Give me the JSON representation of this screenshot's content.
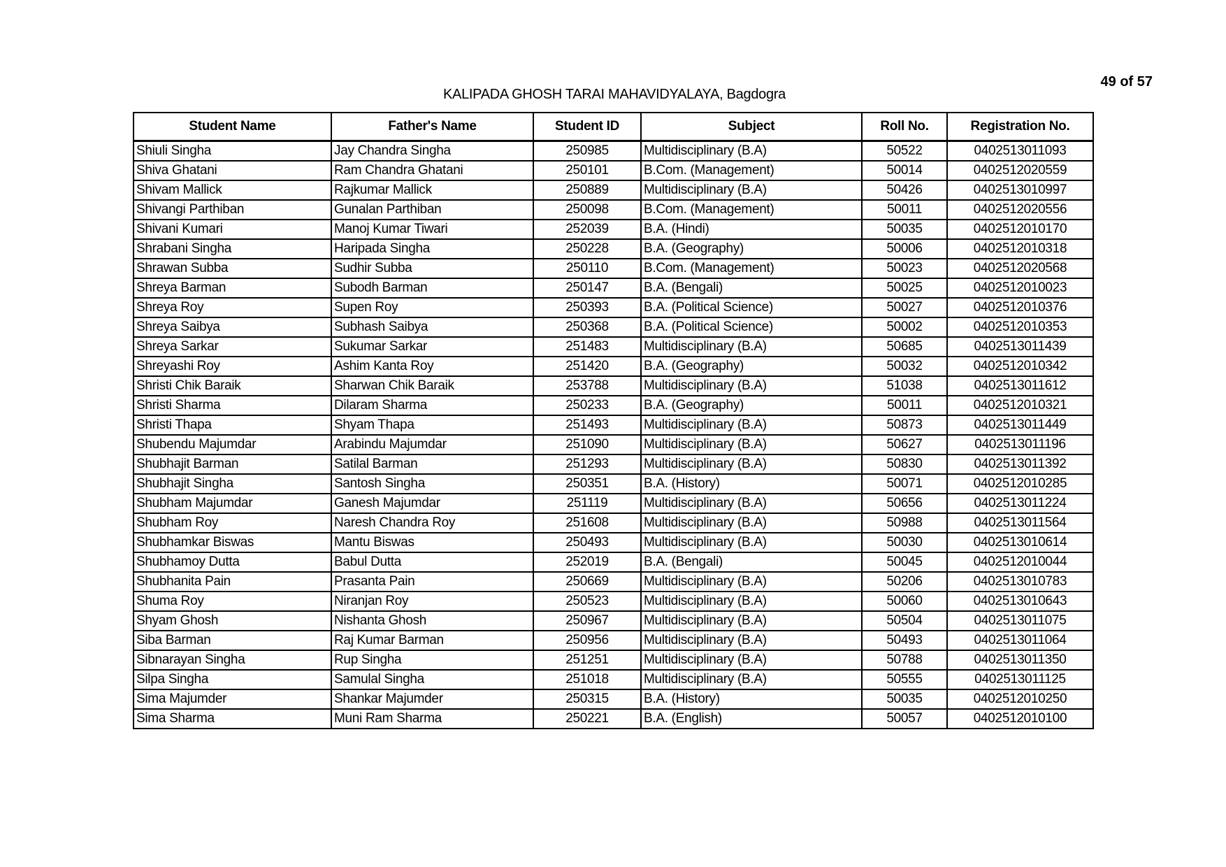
{
  "page": {
    "number_label": "49 of 57",
    "title": "KALIPADA GHOSH TARAI MAHAVIDYALAYA, Bagdogra"
  },
  "table": {
    "headers": [
      "Student Name",
      "Father's Name",
      "Student ID",
      "Subject",
      "Roll No.",
      "Registration No."
    ],
    "rows": [
      [
        "Shiuli Singha",
        "Jay Chandra Singha",
        "250985",
        "Multidisciplinary (B.A)",
        "50522",
        "0402513011093"
      ],
      [
        "Shiva Ghatani",
        "Ram Chandra Ghatani",
        "250101",
        "B.Com. (Management)",
        "50014",
        "0402512020559"
      ],
      [
        "Shivam Mallick",
        "Rajkumar Mallick",
        "250889",
        "Multidisciplinary (B.A)",
        "50426",
        "0402513010997"
      ],
      [
        "Shivangi Parthiban",
        "Gunalan Parthiban",
        "250098",
        "B.Com. (Management)",
        "50011",
        "0402512020556"
      ],
      [
        "Shivani Kumari",
        "Manoj Kumar Tiwari",
        "252039",
        "B.A. (Hindi)",
        "50035",
        "0402512010170"
      ],
      [
        "Shrabani Singha",
        "Haripada Singha",
        "250228",
        "B.A. (Geography)",
        "50006",
        "0402512010318"
      ],
      [
        "Shrawan Subba",
        "Sudhir Subba",
        "250110",
        "B.Com. (Management)",
        "50023",
        "0402512020568"
      ],
      [
        "Shreya Barman",
        "Subodh Barman",
        "250147",
        "B.A. (Bengali)",
        "50025",
        "0402512010023"
      ],
      [
        "Shreya Roy",
        "Supen Roy",
        "250393",
        "B.A. (Political Science)",
        "50027",
        "0402512010376"
      ],
      [
        "Shreya Saibya",
        "Subhash Saibya",
        "250368",
        "B.A. (Political Science)",
        "50002",
        "0402512010353"
      ],
      [
        "Shreya Sarkar",
        "Sukumar Sarkar",
        "251483",
        "Multidisciplinary (B.A)",
        "50685",
        "0402513011439"
      ],
      [
        "Shreyashi Roy",
        "Ashim Kanta Roy",
        "251420",
        "B.A. (Geography)",
        "50032",
        "0402512010342"
      ],
      [
        "Shristi Chik Baraik",
        "Sharwan Chik Baraik",
        "253788",
        "Multidisciplinary (B.A)",
        "51038",
        "0402513011612"
      ],
      [
        "Shristi Sharma",
        "Dilaram Sharma",
        "250233",
        "B.A. (Geography)",
        "50011",
        "0402512010321"
      ],
      [
        "Shristi Thapa",
        "Shyam Thapa",
        "251493",
        "Multidisciplinary (B.A)",
        "50873",
        "0402513011449"
      ],
      [
        "Shubendu Majumdar",
        "Arabindu Majumdar",
        "251090",
        "Multidisciplinary (B.A)",
        "50627",
        "0402513011196"
      ],
      [
        "Shubhajit Barman",
        "Satilal Barman",
        "251293",
        "Multidisciplinary (B.A)",
        "50830",
        "0402513011392"
      ],
      [
        "Shubhajit Singha",
        "Santosh Singha",
        "250351",
        "B.A. (History)",
        "50071",
        "0402512010285"
      ],
      [
        "Shubham Majumdar",
        "Ganesh Majumdar",
        "251119",
        "Multidisciplinary (B.A)",
        "50656",
        "0402513011224"
      ],
      [
        "Shubham Roy",
        "Naresh Chandra Roy",
        "251608",
        "Multidisciplinary (B.A)",
        "50988",
        "0402513011564"
      ],
      [
        "Shubhamkar Biswas",
        "Mantu Biswas",
        "250493",
        "Multidisciplinary (B.A)",
        "50030",
        "0402513010614"
      ],
      [
        "Shubhamoy Dutta",
        "Babul Dutta",
        "252019",
        "B.A. (Bengali)",
        "50045",
        "0402512010044"
      ],
      [
        "Shubhanita Pain",
        "Prasanta Pain",
        "250669",
        "Multidisciplinary (B.A)",
        "50206",
        "0402513010783"
      ],
      [
        "Shuma Roy",
        "Niranjan Roy",
        "250523",
        "Multidisciplinary (B.A)",
        "50060",
        "0402513010643"
      ],
      [
        "Shyam Ghosh",
        "Nishanta Ghosh",
        "250967",
        "Multidisciplinary (B.A)",
        "50504",
        "0402513011075"
      ],
      [
        "Siba Barman",
        "Raj Kumar Barman",
        "250956",
        "Multidisciplinary (B.A)",
        "50493",
        "0402513011064"
      ],
      [
        "Sibnarayan Singha",
        "Rup Singha",
        "251251",
        "Multidisciplinary (B.A)",
        "50788",
        "0402513011350"
      ],
      [
        "Silpa Singha",
        "Samulal Singha",
        "251018",
        "Multidisciplinary (B.A)",
        "50555",
        "0402513011125"
      ],
      [
        "Sima Majumder",
        "Shankar Majumder",
        "250315",
        "B.A. (History)",
        "50035",
        "0402512010250"
      ],
      [
        "Sima Sharma",
        "Muni Ram Sharma",
        "250221",
        "B.A. (English)",
        "50057",
        "0402512010100"
      ]
    ]
  }
}
